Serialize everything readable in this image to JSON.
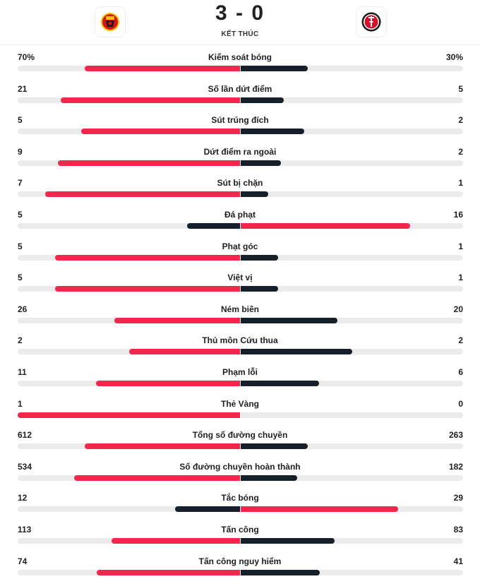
{
  "match": {
    "score": "3 - 0",
    "status": "KẾT THÚC",
    "home_logo_icon": "manchester-united-crest-icon",
    "away_logo_icon": "charlton-athletic-crest-icon"
  },
  "colors": {
    "leader": "#f2274b",
    "trailer": "#16202b",
    "track": "#ebebeb"
  },
  "stats": [
    {
      "label": "Kiểm soát bóng",
      "home": "70%",
      "away": "30%",
      "home_val": 70,
      "away_val": 30
    },
    {
      "label": "Số lần dứt điểm",
      "home": "21",
      "away": "5",
      "home_val": 21,
      "away_val": 5
    },
    {
      "label": "Sút trúng đích",
      "home": "5",
      "away": "2",
      "home_val": 5,
      "away_val": 2
    },
    {
      "label": "Dứt điểm ra ngoài",
      "home": "9",
      "away": "2",
      "home_val": 9,
      "away_val": 2
    },
    {
      "label": "Sút bị chặn",
      "home": "7",
      "away": "1",
      "home_val": 7,
      "away_val": 1
    },
    {
      "label": "Đá phạt",
      "home": "5",
      "away": "16",
      "home_val": 5,
      "away_val": 16
    },
    {
      "label": "Phạt góc",
      "home": "5",
      "away": "1",
      "home_val": 5,
      "away_val": 1
    },
    {
      "label": "Việt vị",
      "home": "5",
      "away": "1",
      "home_val": 5,
      "away_val": 1
    },
    {
      "label": "Ném biên",
      "home": "26",
      "away": "20",
      "home_val": 26,
      "away_val": 20
    },
    {
      "label": "Thủ môn Cứu thua",
      "home": "2",
      "away": "2",
      "home_val": 2,
      "away_val": 2
    },
    {
      "label": "Phạm lỗi",
      "home": "11",
      "away": "6",
      "home_val": 11,
      "away_val": 6
    },
    {
      "label": "Thẻ Vàng",
      "home": "1",
      "away": "0",
      "home_val": 1,
      "away_val": 0
    },
    {
      "label": "Tổng số đường chuyền",
      "home": "612",
      "away": "263",
      "home_val": 612,
      "away_val": 263
    },
    {
      "label": "Số đường chuyền hoàn thành",
      "home": "534",
      "away": "182",
      "home_val": 534,
      "away_val": 182
    },
    {
      "label": "Tắc bóng",
      "home": "12",
      "away": "29",
      "home_val": 12,
      "away_val": 29
    },
    {
      "label": "Tấn công",
      "home": "113",
      "away": "83",
      "home_val": 113,
      "away_val": 83
    },
    {
      "label": "Tấn công nguy hiểm",
      "home": "74",
      "away": "41",
      "home_val": 74,
      "away_val": 41
    }
  ]
}
